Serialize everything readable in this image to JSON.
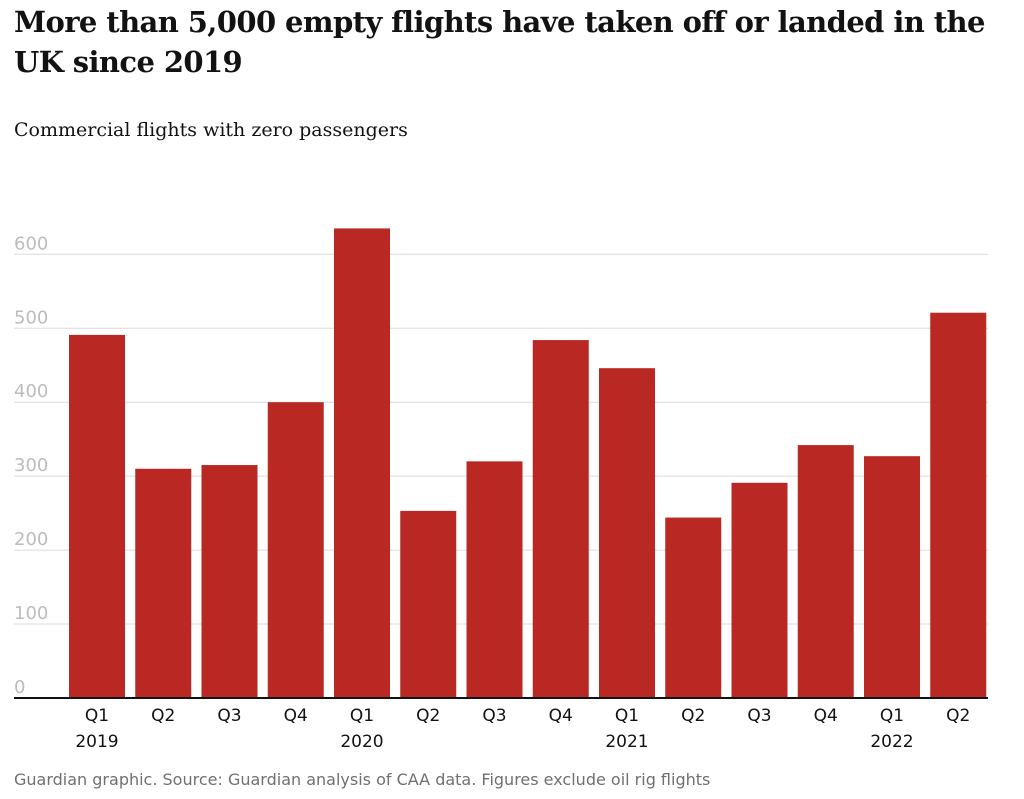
{
  "header": {
    "title": "More than 5,000 empty flights have taken off or landed in the UK since 2019",
    "subtitle": "Commercial flights with zero passengers"
  },
  "footer": {
    "source": "Guardian graphic. Source: Guardian analysis of CAA data. Figures exclude oil rig flights"
  },
  "colors": {
    "bar": "#b92822",
    "grid": "#dcdcdc",
    "axis": "#121212",
    "tick_label": "#bdbdbd",
    "category_label": "#121212"
  },
  "chart_data": {
    "type": "bar",
    "title": "More than 5,000 empty flights have taken off or landed in the UK since 2019",
    "subtitle": "Commercial flights with zero passengers",
    "categories": [
      "Q1",
      "Q2",
      "Q3",
      "Q4",
      "Q1",
      "Q2",
      "Q3",
      "Q4",
      "Q1",
      "Q2",
      "Q3",
      "Q4",
      "Q1",
      "Q2"
    ],
    "years": [
      {
        "label": "2019",
        "category_index": 0
      },
      {
        "label": "2020",
        "category_index": 4
      },
      {
        "label": "2021",
        "category_index": 8
      },
      {
        "label": "2022",
        "category_index": 12
      }
    ],
    "values": [
      491,
      310,
      315,
      400,
      635,
      253,
      320,
      484,
      446,
      244,
      291,
      342,
      327,
      521
    ],
    "yticks": [
      0,
      100,
      200,
      300,
      400,
      500,
      600
    ],
    "ylim": [
      0,
      650
    ],
    "xlabel": "",
    "ylabel": "",
    "grid": true,
    "legend": "none"
  }
}
